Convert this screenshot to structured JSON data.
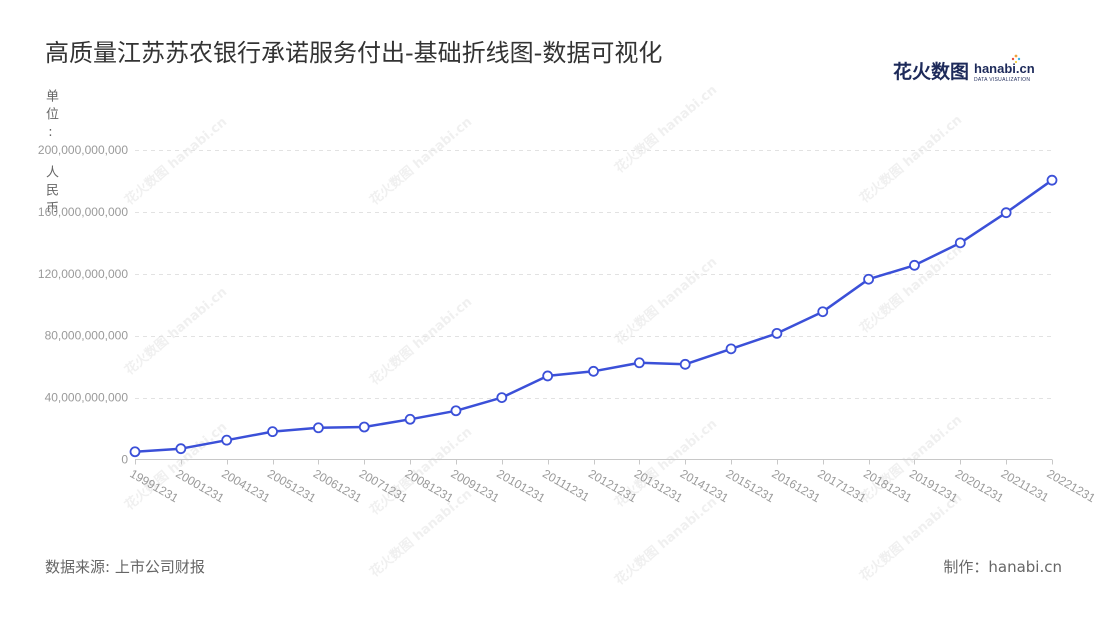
{
  "logo": {
    "cn": "花火数图",
    "en": "hanabi.cn",
    "sub": "DATA VISUALIZATION"
  },
  "watermark": "花火数图 hanabi.cn",
  "footer": {
    "source": "数据来源: 上市公司财报",
    "credit": "制作：hanabi.cn"
  },
  "colors": {
    "line": "#3b50d8",
    "marker_fill": "#ffffff",
    "grid": "#e2e2e2",
    "axis": "#c8c8c8",
    "tick_text": "#9a9a9a",
    "logo": "#1d2a5a"
  },
  "chart_data": {
    "type": "line",
    "title": "高质量江苏苏农银行承诺服务付出-基础折线图-数据可视化",
    "ylabel": "单位: 人民币",
    "categories": [
      "19991231",
      "20001231",
      "20041231",
      "20051231",
      "20061231",
      "20071231",
      "20081231",
      "20091231",
      "20101231",
      "20111231",
      "20121231",
      "20131231",
      "20141231",
      "20151231",
      "20161231",
      "20171231",
      "20181231",
      "20191231",
      "20201231",
      "20211231",
      "20221231"
    ],
    "series": [
      {
        "values": [
          5000000000,
          7000000000,
          12500000000,
          18000000000,
          20500000000,
          21000000000,
          26000000000,
          31500000000,
          40000000000,
          54000000000,
          57000000000,
          62500000000,
          61500000000,
          71500000000,
          81500000000,
          95500000000,
          116500000000,
          125500000000,
          140000000000,
          159500000000,
          180500000000
        ]
      }
    ],
    "ylim": [
      0,
      200000000000
    ],
    "yticks": [
      0,
      40000000000,
      80000000000,
      120000000000,
      160000000000,
      200000000000
    ],
    "ytick_labels": [
      "0",
      "40,000,000,000",
      "80,000,000,000",
      "120,000,000,000",
      "160,000,000,000",
      "200,000,000,000"
    ],
    "grid": true
  }
}
